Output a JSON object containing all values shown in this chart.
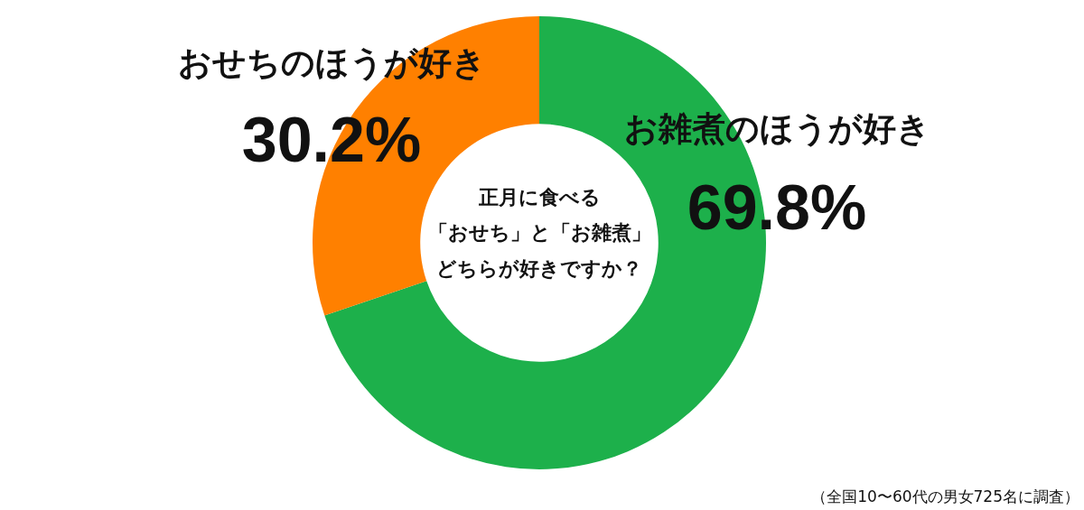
{
  "chart_data": {
    "type": "donut",
    "title": "正月に食べる「おせち」と「お雑煮」どちらが好きですか？",
    "categories": [
      "お雑煮のほうが好き",
      "おせちのほうが好き"
    ],
    "values": [
      69.8,
      30.2
    ],
    "colors": [
      "#1db04b",
      "#ff8000"
    ],
    "value_labels": [
      "69.8%",
      "30.2%"
    ],
    "annotations": [
      "（全国10〜60代の男女725名に調査）"
    ]
  }
}
